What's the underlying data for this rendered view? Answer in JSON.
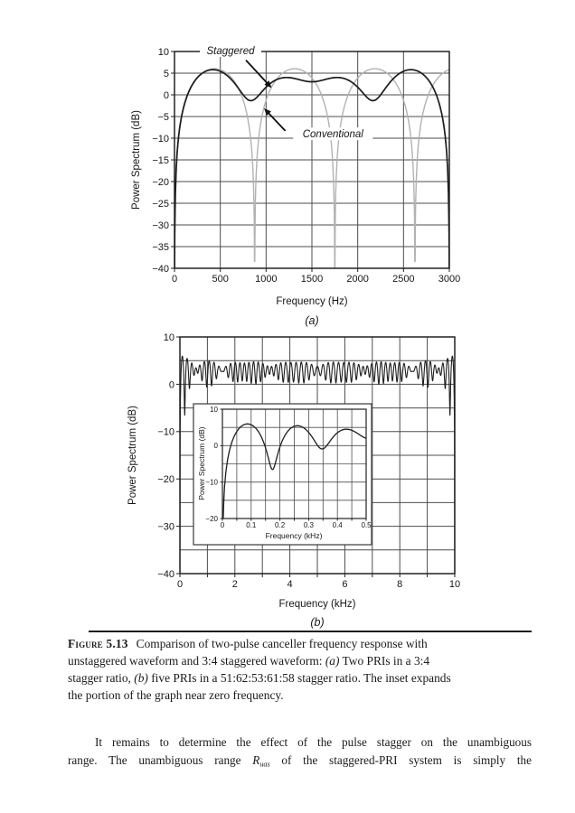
{
  "page": {
    "caption": {
      "label": "Figure 5.13",
      "lines": [
        [
          {
            "t": "Figure 5.13",
            "s": "b-sc"
          },
          {
            "t": "Comparison of two-pulse canceller frequency response with",
            "s": ""
          }
        ],
        [
          {
            "t": "unstaggered waveform and 3:4 staggered waveform: ",
            "s": ""
          },
          {
            "t": "(a)",
            "s": "i"
          },
          {
            "t": " Two PRIs in a 3:4",
            "s": ""
          }
        ],
        [
          {
            "t": "stagger ratio, ",
            "s": ""
          },
          {
            "t": "(b)",
            "s": "i"
          },
          {
            "t": " five PRIs in a 51:62:53:61:58 stagger ratio. The inset expands",
            "s": ""
          }
        ],
        [
          {
            "t": "the portion of the graph near zero frequency.",
            "s": ""
          }
        ]
      ]
    },
    "body": {
      "lines": [
        [
          {
            "t": "It remains to determine the effect of the pulse stagger on the unambiguous",
            "s": ""
          }
        ],
        [
          {
            "t": "range. The unambiguous range ",
            "s": ""
          },
          {
            "t": "R",
            "s": "i"
          },
          {
            "t": "uas",
            "s": "sub-i"
          },
          {
            "t": " of the staggered-PRI system is simply the",
            "s": ""
          }
        ]
      ]
    }
  },
  "chart_data": [
    {
      "id": "plot-a",
      "type": "line",
      "xlabel": "Frequency (Hz)",
      "sublabel": "(a)",
      "ylabel": "Power Spectrum (dB)",
      "xlim": [
        0,
        3000
      ],
      "ylim": [
        -40,
        10
      ],
      "xgrid_step": 500,
      "ygrid_step": 5,
      "grid": true,
      "legend": "inline-annotations",
      "xticks": {
        "values": [
          0,
          500,
          1000,
          1500,
          2000,
          2500,
          3000
        ],
        "labels": [
          "0",
          "500",
          "1000",
          "1500",
          "2000",
          "2500",
          "3000"
        ],
        "minor": [
          0,
          500,
          1000,
          1500,
          2000,
          2500,
          3000
        ]
      },
      "yticks": {
        "values": [
          10,
          5,
          0,
          -5,
          -10,
          -15,
          -20,
          -25,
          -30,
          -35,
          -40
        ],
        "labels": [
          "10",
          "5",
          "0",
          "−5",
          "−10",
          "−15",
          "−20",
          "−25",
          "−30",
          "−35",
          "−40"
        ]
      },
      "series": [
        {
          "name": "Conventional",
          "model": "two_pulse_canceller_avg_dB",
          "stagger_ratio": "1 (unstaggered)",
          "null_freqs": [
            875
          ],
          "peak_db": 6.02,
          "color": "#b2b2b2",
          "width": 1.4,
          "samples": 900
        },
        {
          "name": "Staggered",
          "model": "two_pulse_canceller_avg_dB",
          "stagger_ratio": "3:4",
          "null_freqs": [
            1000,
            750
          ],
          "peak_db": 6.02,
          "color": "#1c1c1c",
          "width": 1.7,
          "samples": 900
        }
      ],
      "annotations": [
        {
          "text": "Staggered",
          "x": 612,
          "y": 10.2,
          "arrow": {
            "x1": 780,
            "y1": 8.0,
            "x2": 1060,
            "y2": 1.6
          }
        },
        {
          "text": "Conventional",
          "x": 1730,
          "y": -9,
          "arrow": {
            "x1": 1210,
            "y1": -8.3,
            "x2": 977,
            "y2": -3.1
          }
        }
      ]
    },
    {
      "id": "plot-b",
      "type": "line",
      "xlabel": "Frequency (kHz)",
      "sublabel": "(b)",
      "ylabel": "Power Spectrum (dB)",
      "xlim": [
        0,
        10
      ],
      "ylim": [
        -40,
        10
      ],
      "xgrid_step": 1,
      "ygrid_step": 5,
      "grid": true,
      "xticks": {
        "values": [
          0,
          2,
          4,
          6,
          8,
          10
        ],
        "labels": [
          "0",
          "2",
          "4",
          "6",
          "8",
          "10"
        ],
        "minor": [
          0,
          1,
          2,
          3,
          4,
          5,
          6,
          7,
          8,
          9,
          10
        ]
      },
      "yticks": {
        "values": [
          10,
          0,
          -10,
          -20,
          -30,
          -40
        ],
        "labels": [
          "10",
          "0",
          "−10",
          "−20",
          "−30",
          "−40"
        ]
      },
      "series": [
        {
          "name": "Staggered-5PRI",
          "model": "two_pulse_canceller_avg_dB",
          "stagger_ratio": "51:62:53:61:58",
          "null_freqs": [
            0.1960784,
            0.1612903,
            0.1886792,
            0.1639344,
            0.1724138
          ],
          "peak_db": 6.02,
          "color": "#1e1e1e",
          "width": 1.1,
          "samples": 2000
        }
      ],
      "annotations": []
    },
    {
      "id": "inset",
      "type": "line",
      "xlabel": "Frequency (kHz)",
      "sublabel": "",
      "ylabel": "Power Spectrum (dB)",
      "xlim": [
        0,
        0.5
      ],
      "ylim": [
        -20,
        10
      ],
      "xgrid_step": 0.05,
      "ygrid_step": 5,
      "grid": true,
      "xticks": {
        "values": [
          0,
          0.1,
          0.2,
          0.3,
          0.4,
          0.5
        ],
        "labels": [
          "0",
          "0.1",
          "0.2",
          "0.3",
          "0.4",
          "0.5"
        ],
        "minor": [
          0,
          0.05,
          0.1,
          0.15,
          0.2,
          0.25,
          0.3,
          0.35,
          0.4,
          0.45,
          0.5
        ]
      },
      "yticks": {
        "values": [
          10,
          0,
          -10,
          -20
        ],
        "labels": [
          "10",
          "0",
          "−10",
          "−20"
        ]
      },
      "series": [
        {
          "name": "Staggered-5PRI-lowfreq",
          "model": "two_pulse_canceller_avg_dB",
          "stagger_ratio": "51:62:53:61:58",
          "null_freqs": [
            0.1960784,
            0.1612903,
            0.1886792,
            0.1639344,
            0.1724138
          ],
          "peak_db": 6.02,
          "color": "#1e1e1e",
          "width": 1.3,
          "samples": 500
        }
      ],
      "annotations": []
    }
  ]
}
